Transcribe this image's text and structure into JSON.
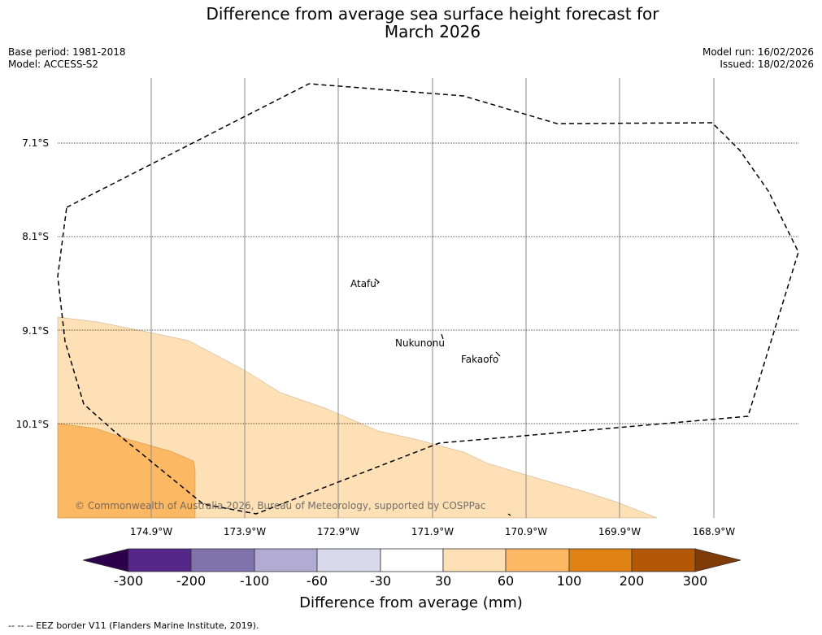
{
  "title_line1": "Difference from average sea surface height forecast for",
  "title_line2": "March 2026",
  "meta_left": {
    "base_period": "Base period: 1981-2018",
    "model": "Model: ACCESS-S2"
  },
  "meta_right": {
    "model_run": "Model run: 16/02/2026",
    "issued": "Issued: 18/02/2026"
  },
  "latitude_labels": [
    "7.1°S",
    "8.1°S",
    "9.1°S",
    "10.1°S"
  ],
  "longitude_labels": [
    "174.9°W",
    "173.9°W",
    "172.9°W",
    "171.9°W",
    "170.9°W",
    "169.9°W",
    "168.9°W"
  ],
  "places": {
    "atafu": "Atafu",
    "nukunonu": "Nukunonu",
    "fakaofo": "Fakaofo"
  },
  "copyright": "© Commonwealth of Australia 2026, Bureau of Meteorology, supported by COSPPac",
  "colorbar": {
    "ticks": [
      "-300",
      "-200",
      "-100",
      "-60",
      "-30",
      "30",
      "60",
      "100",
      "200",
      "300"
    ],
    "colors": [
      "#2d004b",
      "#542788",
      "#8073ac",
      "#b2abd2",
      "#d8daeb",
      "#ffffff",
      "#fee0b6",
      "#fdb863",
      "#e08214",
      "#b35806",
      "#7f3b08"
    ],
    "title": "Difference from average (mm)"
  },
  "footnote": "--  --  -- EEZ border V11 (Flanders Marine Institute, 2019)."
}
